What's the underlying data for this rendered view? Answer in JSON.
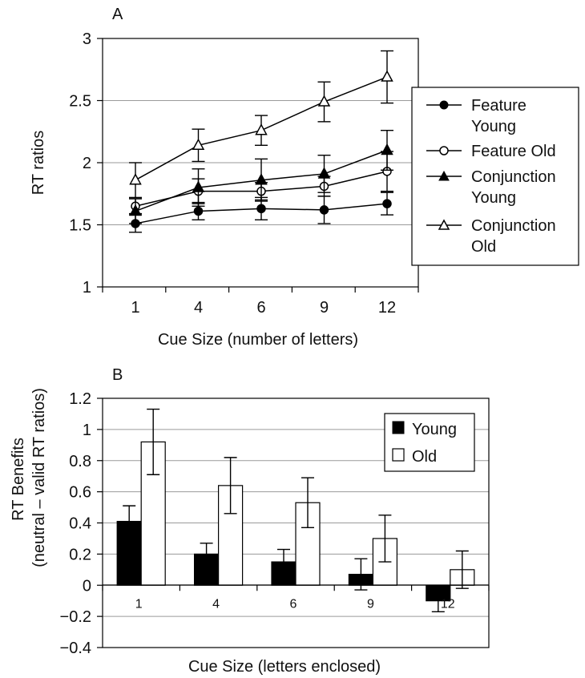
{
  "chart_data": [
    {
      "panel_label": "A",
      "type": "line",
      "title": "",
      "xlabel": "Cue Size (number of letters)",
      "ylabel": "RT ratios",
      "categories": [
        "1",
        "4",
        "6",
        "9",
        "12"
      ],
      "ylim": [
        1,
        3
      ],
      "yticks": [
        "1",
        "1.5",
        "2",
        "2.5",
        "3"
      ],
      "grid": "horizontal",
      "legend_position": "right",
      "series": [
        {
          "name": "Feature Young",
          "marker": "filled-circle",
          "values": [
            1.51,
            1.61,
            1.63,
            1.62,
            1.67
          ],
          "error": [
            0.07,
            0.07,
            0.09,
            0.11,
            0.09
          ]
        },
        {
          "name": "Feature Old",
          "marker": "open-circle",
          "values": [
            1.65,
            1.77,
            1.77,
            1.81,
            1.93
          ],
          "error": [
            0.06,
            0.1,
            0.07,
            0.08,
            0.16
          ]
        },
        {
          "name": "Conjunction Young",
          "marker": "filled-triangle",
          "values": [
            1.61,
            1.8,
            1.86,
            1.91,
            2.1
          ],
          "error": [
            0.1,
            0.15,
            0.17,
            0.15,
            0.16
          ]
        },
        {
          "name": "Conjunction Old",
          "marker": "open-triangle",
          "values": [
            1.86,
            2.14,
            2.26,
            2.49,
            2.69
          ],
          "error": [
            0.14,
            0.13,
            0.12,
            0.16,
            0.21
          ]
        }
      ],
      "legend_labels": [
        [
          "Feature",
          "Young"
        ],
        [
          "Feature Old"
        ],
        [
          "Conjunction",
          "Young"
        ],
        [
          "Conjunction",
          "Old"
        ]
      ]
    },
    {
      "panel_label": "B",
      "type": "bar",
      "title": "",
      "xlabel": "Cue Size (letters enclosed)",
      "ylabel_lines": [
        "RT Benefits",
        "(neutral – valid RT ratios)"
      ],
      "categories": [
        "1",
        "4",
        "6",
        "9",
        "12"
      ],
      "ylim": [
        -0.4,
        1.2
      ],
      "yticks": [
        "−0.4",
        "−0.2",
        "0",
        "0.2",
        "0.4",
        "0.6",
        "0.8",
        "1",
        "1.2"
      ],
      "grid": "horizontal",
      "legend_position": "top-right",
      "series": [
        {
          "name": "Young",
          "color": "#000000",
          "values": [
            0.41,
            0.2,
            0.15,
            0.07,
            -0.1
          ],
          "error": [
            0.1,
            0.07,
            0.08,
            0.1,
            0.07
          ]
        },
        {
          "name": "Old",
          "color": "#ffffff",
          "values": [
            0.92,
            0.64,
            0.53,
            0.3,
            0.1
          ],
          "error": [
            0.21,
            0.18,
            0.16,
            0.15,
            0.12
          ]
        }
      ]
    }
  ]
}
